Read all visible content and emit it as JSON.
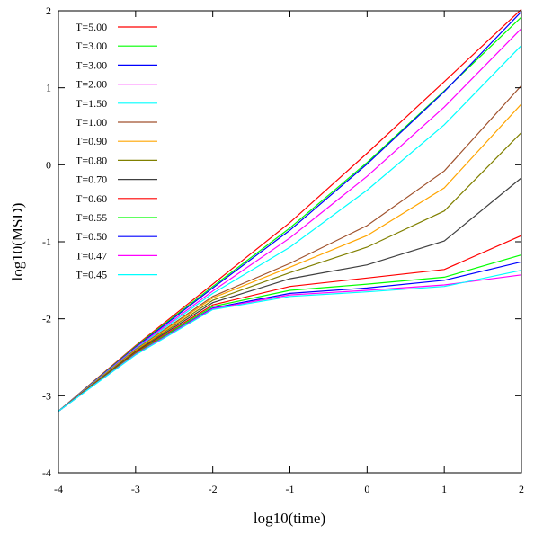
{
  "chart_data": {
    "type": "line",
    "xlabel": "log10(time)",
    "ylabel": "log10(MSD)",
    "xlim": [
      -4,
      2
    ],
    "ylim": [
      -4,
      2
    ],
    "x_ticks": [
      "-4",
      "-3",
      "-2",
      "-1",
      "0",
      "1",
      "2"
    ],
    "y_ticks": [
      "-4",
      "-3",
      "-2",
      "-1",
      "0",
      "1",
      "2"
    ],
    "grid": false,
    "legend_position": "top-left",
    "series": [
      {
        "name": "T=5.00",
        "color": "#ff0000",
        "points": [
          [
            -4,
            -3.2
          ],
          [
            -3,
            -2.35
          ],
          [
            -2,
            -1.55
          ],
          [
            -1,
            -0.75
          ],
          [
            0,
            0.15
          ],
          [
            1,
            1.08
          ],
          [
            2,
            2.02
          ]
        ]
      },
      {
        "name": "T=3.00",
        "color": "#00ff00",
        "points": [
          [
            -4,
            -3.2
          ],
          [
            -3,
            -2.36
          ],
          [
            -2,
            -1.58
          ],
          [
            -1,
            -0.82
          ],
          [
            0,
            0.03
          ],
          [
            1,
            0.96
          ],
          [
            2,
            1.92
          ]
        ]
      },
      {
        "name": "T=3.00",
        "color": "#0000ff",
        "points": [
          [
            -4,
            -3.2
          ],
          [
            -3,
            -2.37
          ],
          [
            -2,
            -1.6
          ],
          [
            -1,
            -0.85
          ],
          [
            0,
            0.01
          ],
          [
            1,
            0.95
          ],
          [
            2,
            1.99
          ]
        ]
      },
      {
        "name": "T=2.00",
        "color": "#ff00ff",
        "points": [
          [
            -4,
            -3.2
          ],
          [
            -3,
            -2.38
          ],
          [
            -2,
            -1.64
          ],
          [
            -1,
            -0.95
          ],
          [
            0,
            -0.15
          ],
          [
            1,
            0.75
          ],
          [
            2,
            1.77
          ]
        ]
      },
      {
        "name": "T=1.50",
        "color": "#00ffff",
        "points": [
          [
            -4,
            -3.2
          ],
          [
            -3,
            -2.39
          ],
          [
            -2,
            -1.67
          ],
          [
            -1,
            -1.07
          ],
          [
            0,
            -0.33
          ],
          [
            1,
            0.52
          ],
          [
            2,
            1.55
          ]
        ]
      },
      {
        "name": "T=1.00",
        "color": "#a0522d",
        "points": [
          [
            -4,
            -3.2
          ],
          [
            -3,
            -2.4
          ],
          [
            -2,
            -1.71
          ],
          [
            -1,
            -1.28
          ],
          [
            0,
            -0.79
          ],
          [
            1,
            -0.08
          ],
          [
            2,
            1.03
          ]
        ]
      },
      {
        "name": "T=0.90",
        "color": "#ffa500",
        "points": [
          [
            -4,
            -3.2
          ],
          [
            -3,
            -2.41
          ],
          [
            -2,
            -1.73
          ],
          [
            -1,
            -1.33
          ],
          [
            0,
            -0.92
          ],
          [
            1,
            -0.3
          ],
          [
            2,
            0.79
          ]
        ]
      },
      {
        "name": "T=0.80",
        "color": "#808000",
        "points": [
          [
            -4,
            -3.2
          ],
          [
            -3,
            -2.42
          ],
          [
            -2,
            -1.76
          ],
          [
            -1,
            -1.4
          ],
          [
            0,
            -1.07
          ],
          [
            1,
            -0.6
          ],
          [
            2,
            0.42
          ]
        ]
      },
      {
        "name": "T=0.70",
        "color": "#404040",
        "points": [
          [
            -4,
            -3.2
          ],
          [
            -3,
            -2.43
          ],
          [
            -2,
            -1.79
          ],
          [
            -1,
            -1.48
          ],
          [
            0,
            -1.3
          ],
          [
            1,
            -0.99
          ],
          [
            2,
            -0.17
          ]
        ]
      },
      {
        "name": "T=0.60",
        "color": "#ff0000",
        "points": [
          [
            -4,
            -3.2
          ],
          [
            -3,
            -2.44
          ],
          [
            -2,
            -1.82
          ],
          [
            -1,
            -1.58
          ],
          [
            0,
            -1.47
          ],
          [
            1,
            -1.36
          ],
          [
            2,
            -0.92
          ]
        ]
      },
      {
        "name": "T=0.55",
        "color": "#00ff00",
        "points": [
          [
            -4,
            -3.2
          ],
          [
            -3,
            -2.45
          ],
          [
            -2,
            -1.84
          ],
          [
            -1,
            -1.63
          ],
          [
            0,
            -1.55
          ],
          [
            1,
            -1.46
          ],
          [
            2,
            -1.17
          ]
        ]
      },
      {
        "name": "T=0.50",
        "color": "#0000ff",
        "points": [
          [
            -4,
            -3.2
          ],
          [
            -3,
            -2.46
          ],
          [
            -2,
            -1.86
          ],
          [
            -1,
            -1.67
          ],
          [
            0,
            -1.6
          ],
          [
            1,
            -1.5
          ],
          [
            2,
            -1.26
          ]
        ]
      },
      {
        "name": "T=0.47",
        "color": "#ff00ff",
        "points": [
          [
            -4,
            -3.2
          ],
          [
            -3,
            -2.46
          ],
          [
            -2,
            -1.87
          ],
          [
            -1,
            -1.69
          ],
          [
            0,
            -1.63
          ],
          [
            1,
            -1.56
          ],
          [
            2,
            -1.43
          ]
        ]
      },
      {
        "name": "T=0.45",
        "color": "#00ffff",
        "points": [
          [
            -4,
            -3.2
          ],
          [
            -3,
            -2.47
          ],
          [
            -2,
            -1.88
          ],
          [
            -1,
            -1.71
          ],
          [
            0,
            -1.65
          ],
          [
            1,
            -1.58
          ],
          [
            2,
            -1.37
          ]
        ]
      }
    ]
  }
}
